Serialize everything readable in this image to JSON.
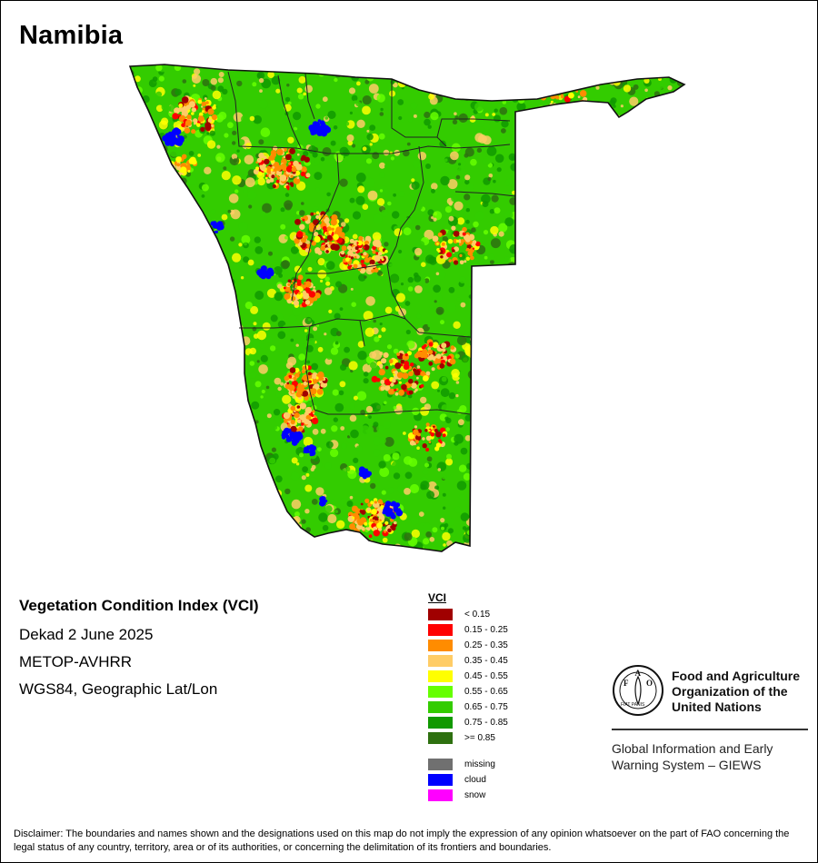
{
  "map": {
    "country_title": "Namibia",
    "colors": {
      "background": "#ffffff",
      "border_line": "#222222",
      "coast_green": "#2e8b1e"
    }
  },
  "info": {
    "index_title": "Vegetation Condition Index (VCI)",
    "period": "Dekad 2 June 2025",
    "sensor": "METOP-AVHRR",
    "projection": "WGS84, Geographic Lat/Lon"
  },
  "legend": {
    "heading": "VCI",
    "classes": [
      {
        "label": "< 0.15",
        "color": "#a00000"
      },
      {
        "label": "0.15 - 0.25",
        "color": "#ff0000"
      },
      {
        "label": "0.25 - 0.35",
        "color": "#ff8c00"
      },
      {
        "label": "0.35 - 0.45",
        "color": "#ffcc66"
      },
      {
        "label": "0.45 - 0.55",
        "color": "#ffff00"
      },
      {
        "label": "0.55 - 0.65",
        "color": "#66ff00"
      },
      {
        "label": "0.65 - 0.75",
        "color": "#33cc00"
      },
      {
        "label": "0.75 - 0.85",
        "color": "#119900"
      },
      {
        "label": ">= 0.85",
        "color": "#2e7010"
      }
    ],
    "extra": [
      {
        "label": "missing",
        "color": "#707070"
      },
      {
        "label": "cloud",
        "color": "#0000ff"
      },
      {
        "label": "snow",
        "color": "#ff00ff"
      }
    ]
  },
  "fao": {
    "logo_letters": [
      "F",
      "A",
      "O"
    ],
    "logo_motto": "FIAT PANIS",
    "org_line1": "Food and Agriculture",
    "org_line2": "Organization of the",
    "org_line3": "United Nations",
    "giews_line1": "Global Information and Early",
    "giews_line2": "Warning System – GIEWS"
  },
  "disclaimer": "Disclaimer: The boundaries and names shown and the designations used on this map do not imply the expression of any opinion whatsoever on the part of FAO concerning the legal status of any country, territory, area or of its authorities, or concerning the delimitation of its frontiers and boundaries."
}
